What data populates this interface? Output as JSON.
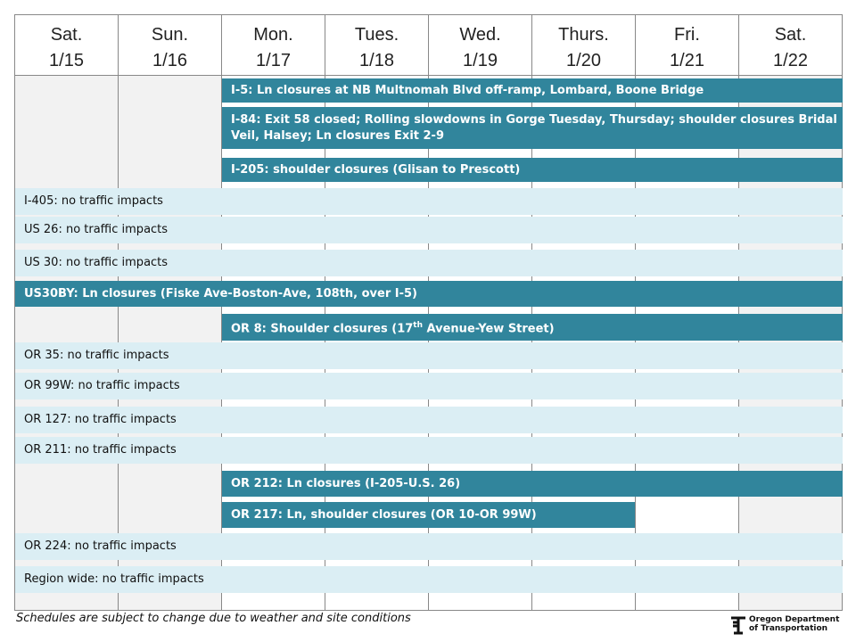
{
  "days": [
    {
      "name": "Sat.",
      "date": "1/15"
    },
    {
      "name": "Sun.",
      "date": "1/16"
    },
    {
      "name": "Mon.",
      "date": "1/17"
    },
    {
      "name": "Tues.",
      "date": "1/18"
    },
    {
      "name": "Wed.",
      "date": "1/19"
    },
    {
      "name": "Thurs.",
      "date": "1/20"
    },
    {
      "name": "Fri.",
      "date": "1/21"
    },
    {
      "name": "Sat.",
      "date": "1/22"
    }
  ],
  "rows": [
    {
      "text": "I-5: Ln closures at NB Multnomah Blvd off-ramp, Lombard, Boone Bridge"
    },
    {
      "text": "I-84: Exit 58 closed; Rolling slowdowns in Gorge Tuesday, Thursday; shoulder closures Bridal Veil, Halsey; Ln closures Exit 2-9"
    },
    {
      "text": "I-205:  shoulder closures (Glisan to Prescott)"
    },
    {
      "text": "I-405: no traffic impacts"
    },
    {
      "text": "US 26: no traffic impacts"
    },
    {
      "text": "US 30: no traffic impacts"
    },
    {
      "text": "US30BY: Ln closures (Fiske Ave-Boston-Ave, 108th, over I-5)"
    },
    {
      "text": "OR 8: Shoulder closures (17",
      "sup": "th",
      "rest": " Avenue-Yew Street)"
    },
    {
      "text": "OR 35: no traffic impacts"
    },
    {
      "text": "OR 99W: no traffic impacts"
    },
    {
      "text": "OR 127: no traffic impacts"
    },
    {
      "text": "OR 211: no traffic impacts"
    },
    {
      "text": "OR 212:  Ln closures (I-205-U.S. 26)"
    },
    {
      "text": "OR 217:  Ln, shoulder closures (OR 10-OR 99W)"
    },
    {
      "text": "OR 224: no traffic impacts"
    },
    {
      "text": "Region wide: no traffic impacts"
    }
  ],
  "footer": {
    "note": "Schedules are subject to change due to weather and site conditions",
    "logo_line1": "Oregon Department",
    "logo_line2": "of Transportation"
  }
}
